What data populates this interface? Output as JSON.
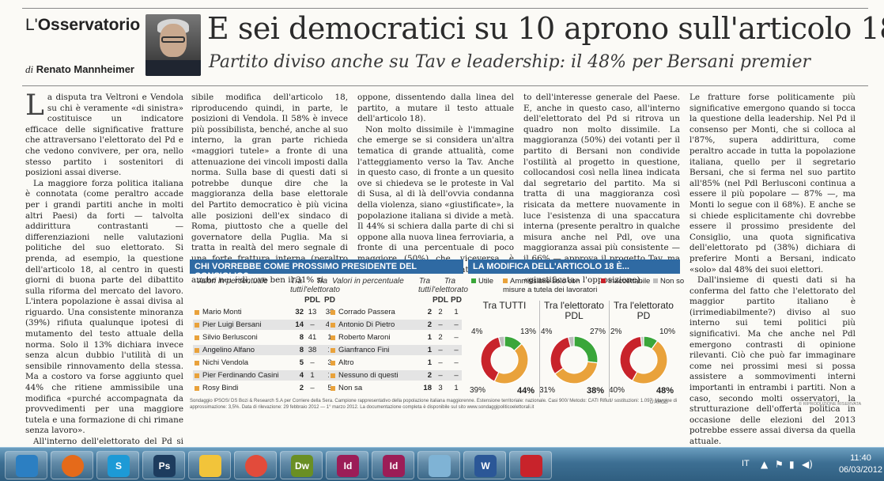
{
  "header": {
    "column_prefix": "L'",
    "column_name": "Osservatorio",
    "author_prefix": "di",
    "author_name": "Renato Mannheimer",
    "headline": "E sei democratici su 10 aprono sull'articolo 18",
    "subheadline": "Partito diviso anche su Tav e leadership: il 48% per Bersani premier"
  },
  "article": {
    "col1": [
      "a disputa tra Veltroni e Vendola su chi è veramente «di sinistra» costituisce un indicatore efficace delle significative fratture che attraversano l'elettorato del Pd e che vedono convivere, per ora, nello stesso partito i sostenitori di posizioni assai diverse.",
      "La maggiore forza politica italiana è connotata (come peraltro accade per i grandi partiti anche in molti altri Paesi) da forti — talvolta addirittura contrastanti — differenziazioni nelle valutazioni politiche del suo elettorato. Si prenda, ad esempio, la questione dell'articolo 18, al centro in questi giorni di buona parte del dibattito sulla riforma del mercato del lavoro. L'intera popolazione è assai divisa al riguardo. Una consistente minoranza (39%) rifiuta qualunque ipotesi di mutamento del testo attuale della norma. Solo il 13% dichiara invece senza alcun dubbio l'utilità di un sensibile rinnovamento della stessa. Ma a costoro va forse aggiunto quel 44% che ritiene ammissibile una modifica «purché accompagnata da provvedimenti per una maggiore tutela e una formazione di chi rimane senza lavoro».",
      "All'interno dell'elettorato del Pd si riproduce una suddivisione per molti versi analoga. Il 40% degli elettori del partito di Bersani si esprime contro ogni pos-"
    ],
    "col2": [
      "sibile modifica dell'articolo 18, riproducendo quindi, in parte, le posizioni di Vendola. Il 58% è invece più possibilista, benché, anche al suo interno, la gran parte richieda «maggiori tutele» a fronte di una attenuazione dei vincoli imposti dalla norma. Sulla base di questi dati si potrebbe dunque dire che la maggioranza della base elettorale del Partito democratico è più vicina alle posizioni dell'ex sindaco di Roma, piuttosto che a quelle del governatore della Puglia. Ma si tratta in realtà del mero segnale di una forte frattura interna (peraltro esistente, sia pure in misura minore, anche nel Pdl, ove ben il 31% si"
    ],
    "col3": [
      "oppone, dissentendo dalla linea del partito, a mutare il testo attuale dell'articolo 18).",
      "Non molto dissimile è l'immagine che emerge se si considera un'altra tematica di grande attualità, come l'atteggiamento verso la Tav. Anche in questo caso, di fronte a un quesito ove si chiedeva se le proteste in Val di Susa, al di là dell'ovvia condanna della violenza, siano «giustificate», la popolazione italiana si divide a metà. Il 44% si schiera dalla parte di chi si oppone alla nuova linea ferroviaria, a fronte di una percentuale di poco maggiore (50%) che, viceversa, è favorevole, in nome soprattut-"
    ],
    "col4": [
      "to dell'interesse generale del Paese. E, anche in questo caso, all'interno dell'elettorato del Pd si ritrova un quadro non molto dissimile. La maggioranza (50%) dei votanti per il partito di Bersani non condivide l'ostilità al progetto in questione, collocandosi così nella linea indicata dal segretario del partito. Ma si tratta di una maggioranza così risicata da mettere nuovamente in luce l'esistenza di una spaccatura interna (presente peraltro in qualche misura anche nel Pdl, ove una maggioranza assai più consistente — il 66% — approva il progetto Tav, ma un forse inaspettato 30% reputa «giustificata» l'opposizione)."
    ],
    "col5": [
      "Le fratture forse politicamente più significative emergono quando si tocca la questione della leadership. Nel Pd il consenso per Monti, che si colloca al l'87%, supera addirittura, come peraltro accade in tutta la popolazione italiana, quello per il segretario Bersani, che si ferma nel suo partito all'85% (nel Pdl Berlusconi continua a essere il più popolare — 87% —, ma Monti lo segue con il 68%). E anche se si chiede esplicitamente chi dovrebbe essere il prossimo presidente del Consiglio, una quota significativa dell'elettorato pd (38%) dichiara di preferire Monti a Bersani, indicato «solo» dal 48% dei suoi elettori.",
      "Dall'insieme di questi dati si ha conferma del fatto che l'elettorato del maggior partito italiano è (irrimediabilmente?) diviso al suo interno sui temi politici più significativi. Ma che anche nel Pdl emergono contrasti di opinione rilevanti. Ciò che può far immaginare come nei prossimi mesi si possa assistere a sommovimenti interni importanti in entrambi i partiti. Non a caso, secondo molti osservatori, la strutturazione dell'offerta politica in occasione delle elezioni del 2013 potrebbe essere assai diversa da quella attuale."
    ],
    "dropcap": "L"
  },
  "table": {
    "title": "CHI VORREBBE COME PROSSIMO PRESIDENTE DEL CONSIGLIO?",
    "head_values": "Valori in percentuale",
    "head_tutti": "Tra tutti",
    "head_tra": "Tra l'elettorato",
    "head_pdl": "PDL",
    "head_pd": "PD",
    "left_rows": [
      {
        "name": "Mario Monti",
        "tutti": "32",
        "pdl": "13",
        "pd": "38"
      },
      {
        "name": "Pier Luigi Bersani",
        "tutti": "14",
        "pdl": "–",
        "pd": "48"
      },
      {
        "name": "Silvio Berlusconi",
        "tutti": "8",
        "pdl": "41",
        "pd": "1"
      },
      {
        "name": "Angelino Alfano",
        "tutti": "8",
        "pdl": "38",
        "pd": "1"
      },
      {
        "name": "Nichi Vendola",
        "tutti": "5",
        "pdl": "–",
        "pd": "3"
      },
      {
        "name": "Pier Ferdinando Casini",
        "tutti": "4",
        "pdl": "1",
        "pd": "1"
      },
      {
        "name": "Rosy Bindi",
        "tutti": "2",
        "pdl": "–",
        "pd": "5"
      }
    ],
    "right_rows": [
      {
        "name": "Corrado Passera",
        "tutti": "2",
        "pdl": "2",
        "pd": "1"
      },
      {
        "name": "Antonio Di Pietro",
        "tutti": "2",
        "pdl": "–",
        "pd": "–"
      },
      {
        "name": "Roberto Maroni",
        "tutti": "1",
        "pdl": "2",
        "pd": "–"
      },
      {
        "name": "Gianfranco Fini",
        "tutti": "1",
        "pdl": "–",
        "pd": "–"
      },
      {
        "name": "Altro",
        "tutti": "1",
        "pdl": "–",
        "pd": "–"
      },
      {
        "name": "Nessuno di questi",
        "tutti": "2",
        "pdl": "–",
        "pd": "–"
      },
      {
        "name": "Non sa",
        "tutti": "18",
        "pdl": "3",
        "pd": "1"
      }
    ]
  },
  "chart_data": {
    "type": "pie",
    "title": "LA MODIFICA DELL'ARTICOLO 18 È...",
    "legend": [
      {
        "name": "Utile",
        "color": "#3aa63a"
      },
      {
        "name": "Ammissibile solo con misure a tutela dei lavoratori",
        "color": "#e9a23b"
      },
      {
        "name": "Inaccettabile",
        "color": "#c8232b"
      },
      {
        "name": "Non so",
        "color": "#bdbdbd"
      }
    ],
    "charts": [
      {
        "label": "Tra TUTTI",
        "values": [
          13,
          44,
          39,
          4
        ]
      },
      {
        "label": "Tra l'elettorato PDL",
        "values": [
          27,
          38,
          31,
          4
        ]
      },
      {
        "label": "Tra l'elettorato PD",
        "values": [
          10,
          48,
          40,
          2
        ]
      }
    ],
    "pct_labels": [
      {
        "tl": "4%",
        "tr": "13%",
        "bl": "39%",
        "br": "44%"
      },
      {
        "tl": "4%",
        "tr": "27%",
        "bl": "31%",
        "br": "38%"
      },
      {
        "tl": "2%",
        "tr": "10%",
        "bl": "40%",
        "br": "48%"
      }
    ]
  },
  "footnote": "Sondaggio IPSOS/ DS Bozi & Research S.A per Corriere della Sera. Campione rappresentativo della popolazione italiana maggiorenne. Estensione territoriale: nazionale. Casi 900/ Metodo: CATI Rifiuti/ sostituzioni: 1.097; Margine di approssimazione: 3,5%. Data di rilevazione: 29 febbraio 2012 — 1° marzo 2012. La documentazione completa è disponibile sul sito www.sondaggipoliticoelettorali.it",
  "credit": "D'ARCO",
  "copyright": "© RIPRODUZIONE RISERVATA",
  "taskbar": {
    "lang": "IT",
    "time": "11:40",
    "date": "06/03/2012",
    "apps": [
      {
        "name": "media-player-icon",
        "label": "",
        "color": "#2c7fc2"
      },
      {
        "name": "firefox-icon",
        "label": "",
        "color": "#e56a1a"
      },
      {
        "name": "skype-icon",
        "label": "S",
        "color": "#1d9ad6"
      },
      {
        "name": "photoshop-icon",
        "label": "Ps",
        "color": "#1d3c5e"
      },
      {
        "name": "outlook-icon",
        "label": "",
        "color": "#f2c43a"
      },
      {
        "name": "chrome-icon",
        "label": "",
        "color": "#e24b3b"
      },
      {
        "name": "dreamweaver-icon",
        "label": "Dw",
        "color": "#6a8f24"
      },
      {
        "name": "indesign-icon",
        "label": "Id",
        "color": "#9c1d57"
      },
      {
        "name": "indesign2-icon",
        "label": "Id",
        "color": "#9c1d57"
      },
      {
        "name": "notepad-icon",
        "label": "",
        "color": "#7fb3d5"
      },
      {
        "name": "word-icon",
        "label": "W",
        "color": "#2b5797"
      },
      {
        "name": "acrobat-icon",
        "label": "",
        "color": "#c8232b"
      }
    ]
  }
}
